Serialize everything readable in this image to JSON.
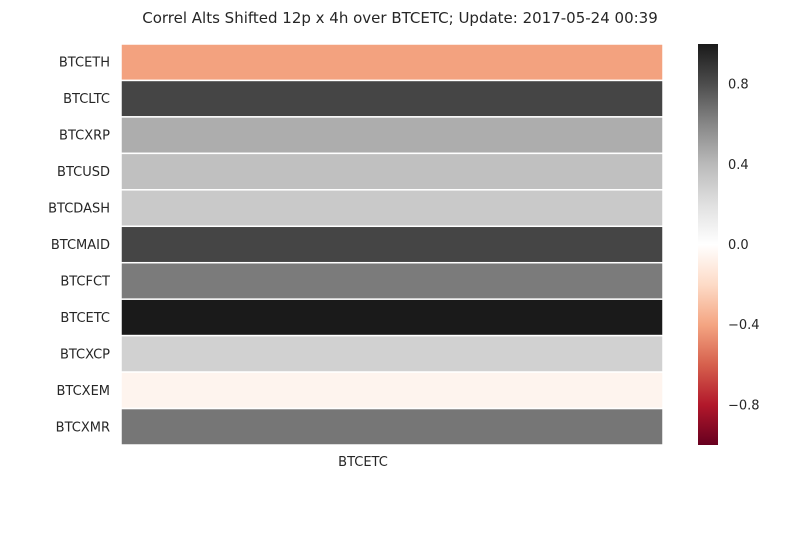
{
  "chart_data": {
    "type": "heatmap",
    "title": "Correl Alts Shifted 12p x 4h over BTCETC; Update: 2017-05-24 00:39",
    "columns": [
      "BTCETC"
    ],
    "rows": [
      "BTCETH",
      "BTCLTC",
      "BTCXRP",
      "BTCUSD",
      "BTCDASH",
      "BTCMAID",
      "BTCFCT",
      "BTCETC",
      "BTCXCP",
      "BTCXEM",
      "BTCXMR"
    ],
    "values": [
      [
        -0.41
      ],
      [
        0.83
      ],
      [
        0.45
      ],
      [
        0.37
      ],
      [
        0.32
      ],
      [
        0.83
      ],
      [
        0.64
      ],
      [
        1.0
      ],
      [
        0.28
      ],
      [
        -0.06
      ],
      [
        0.66
      ]
    ],
    "vmin": -1.0,
    "vmax": 1.0,
    "colorbar_ticks": [
      0.8,
      0.4,
      0.0,
      -0.4,
      -0.8
    ],
    "colorbar_tick_labels": [
      "0.8",
      "0.4",
      "0.0",
      "−0.4",
      "−0.8"
    ],
    "colormap": "RdGy_r",
    "legend": "colorbar-right",
    "grid": false
  }
}
